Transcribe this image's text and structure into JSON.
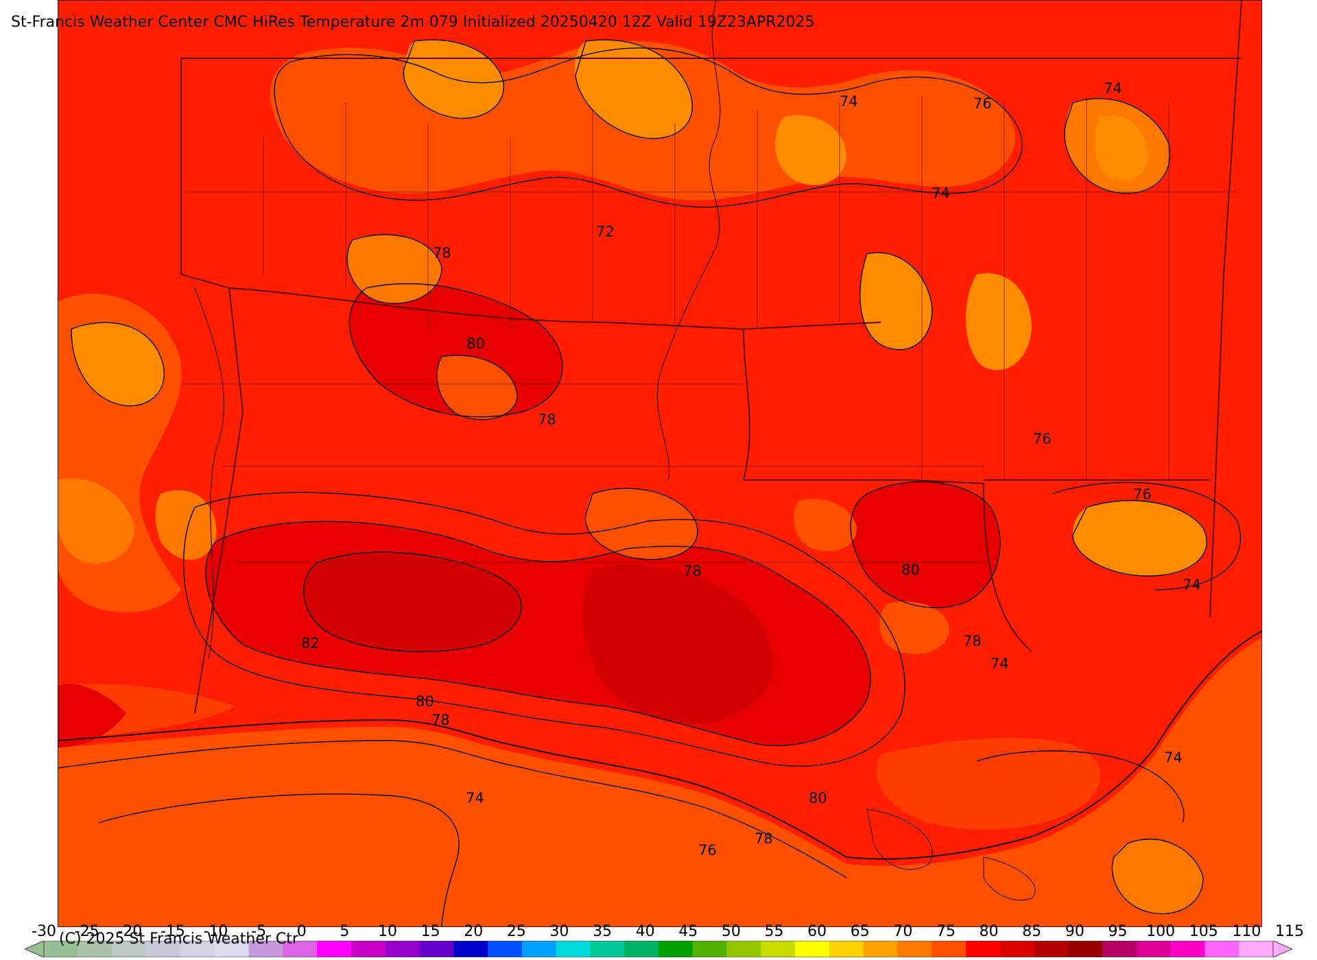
{
  "title": "St-Francis Weather Center CMC HiRes Temperature 2m  079 Initialized 20250420 12Z Valid 19Z23APR2025",
  "copyright": "(C) 2025 St Francis Weather Ctr",
  "colorbar": {
    "ticks": [
      "-30",
      "-25",
      "-20",
      "-15",
      "-10",
      "-5",
      "0",
      "5",
      "10",
      "15",
      "20",
      "25",
      "30",
      "35",
      "40",
      "45",
      "50",
      "55",
      "60",
      "65",
      "70",
      "75",
      "80",
      "85",
      "90",
      "95",
      "100",
      "105",
      "110",
      "115"
    ],
    "colors": [
      "#98be94",
      "#aac3a8",
      "#bcc8c8",
      "#c8c8dc",
      "#d2d2e6",
      "#dcdcf0",
      "#c896dc",
      "#dc64e6",
      "#ff00ff",
      "#c800c8",
      "#9600c8",
      "#6400c8",
      "#0000c8",
      "#0050ff",
      "#00a0ff",
      "#00dcdc",
      "#00c896",
      "#00b464",
      "#00a000",
      "#50b400",
      "#96c800",
      "#c8dc00",
      "#ffff00",
      "#ffd200",
      "#ffa000",
      "#ff7800",
      "#ff5000",
      "#ff0000",
      "#dc0000",
      "#b40000",
      "#960000",
      "#b40064",
      "#dc0096",
      "#ff00c8",
      "#ff64ff",
      "#ffaaff"
    ]
  },
  "contour_labels": {
    "l74a": "74",
    "l76a": "76",
    "l74b": "74",
    "l74c": "74",
    "l72": "72",
    "l78a": "78",
    "l80a": "80",
    "l78b": "78",
    "l76b": "76",
    "l76c": "76",
    "l78c": "78",
    "l80b": "80",
    "l74d": "74",
    "l82": "82",
    "l78d": "78",
    "l74e": "74",
    "l80c": "80",
    "l78e": "78",
    "l74f": "74",
    "l74g": "74",
    "l80d": "80",
    "l78f": "78",
    "l76d": "76"
  },
  "palette": {
    "gulf": "#ff5000",
    "warm": "#ff1e00",
    "hot": "#e60000",
    "hotter": "#d20000",
    "orange": "#ff7800",
    "cooler": "#ff8c00"
  }
}
